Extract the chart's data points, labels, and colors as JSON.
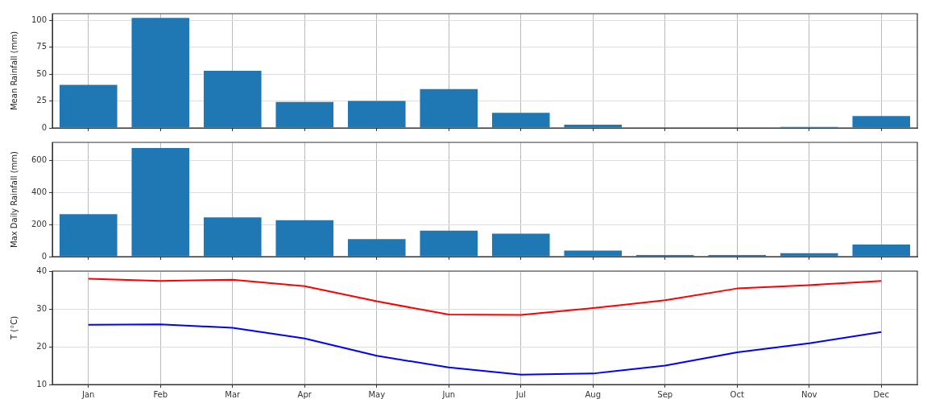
{
  "chart_data": [
    {
      "type": "bar",
      "ylabel": "Mean Rainfall (mm)",
      "categories": [
        null,
        null,
        null,
        null,
        null,
        null,
        null,
        null,
        null,
        null,
        null,
        null
      ],
      "values": [
        40,
        102,
        53,
        24,
        25,
        36,
        14,
        3,
        0,
        0,
        1,
        11
      ],
      "color": "#1f77b4",
      "ylim": [
        0,
        106
      ],
      "yticks": [
        0,
        25,
        50,
        75,
        100
      ],
      "grid": true,
      "tick_labels": "y"
    },
    {
      "type": "bar",
      "ylabel": "Max Daily Rainfall (mm)",
      "categories": [
        null,
        null,
        null,
        null,
        null,
        null,
        null,
        null,
        null,
        null,
        null,
        null
      ],
      "values": [
        265,
        680,
        245,
        228,
        110,
        163,
        143,
        38,
        10,
        10,
        22,
        75
      ],
      "color": "#1f77b4",
      "ylim": [
        0,
        715
      ],
      "yticks": [
        0,
        200,
        400,
        600
      ],
      "grid": true,
      "tick_labels": "y"
    },
    {
      "type": "line",
      "ylabel": "T (°C)",
      "categories": [
        "Jan",
        "Feb",
        "Mar",
        "Apr",
        "May",
        "Jun",
        "Jul",
        "Aug",
        "Sep",
        "Oct",
        "Nov",
        "Dec"
      ],
      "series": [
        {
          "color": "#ff0000",
          "values": [
            38,
            37.4,
            37.7,
            36,
            32,
            28.5,
            28.4,
            30.2,
            32.3,
            35.4,
            36.3,
            37.4
          ]
        },
        {
          "color": "#0000ff",
          "values": [
            25.8,
            25.9,
            25,
            22.2,
            17.6,
            14.5,
            12.6,
            12.9,
            15,
            18.5,
            20.9,
            23.9
          ]
        }
      ],
      "ylim": [
        10,
        40
      ],
      "yticks": [
        10,
        20,
        30,
        40
      ],
      "grid": true,
      "marker": "none",
      "line_style": "solid"
    }
  ]
}
